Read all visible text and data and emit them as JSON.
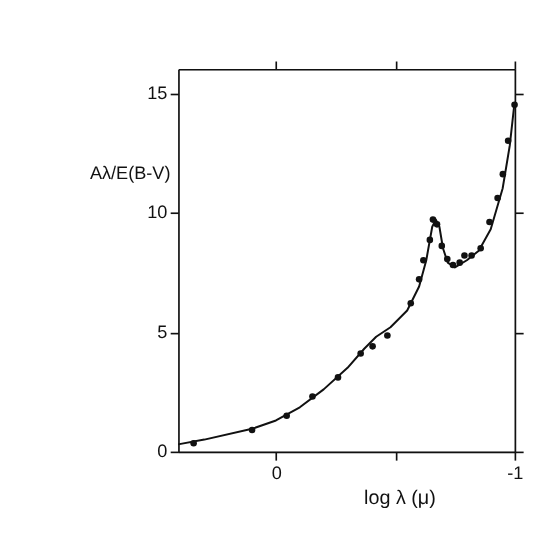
{
  "chart_data": {
    "type": "line",
    "xlabel": "log λ (μ)",
    "ylabel": "Aλ/E(B-V)",
    "xlim": [
      0.41,
      -1
    ],
    "xticks": [
      0,
      {
        "value": -0.5,
        "label": null
      },
      -1
    ],
    "ylim": [
      0,
      16
    ],
    "yticks": [
      0,
      5,
      10,
      15
    ],
    "grid": false,
    "series": [
      {
        "type": "line",
        "color": "#111111",
        "marker": "none",
        "line_style": "solid",
        "x": [
          0.41,
          0.3,
          0.1,
          0,
          -0.1,
          -0.2,
          -0.3,
          -0.37,
          -0.42,
          -0.48,
          -0.55,
          -0.6,
          -0.63,
          -0.655,
          -0.67,
          -0.685,
          -0.7,
          -0.72,
          -0.75,
          -0.8,
          -0.85,
          -0.9,
          -0.95,
          -0.98,
          -1.0
        ],
        "values": [
          0.3,
          0.5,
          0.95,
          1.3,
          1.85,
          2.6,
          3.5,
          4.3,
          4.8,
          5.2,
          5.9,
          6.9,
          8.0,
          9.4,
          9.7,
          9.4,
          8.5,
          7.9,
          7.7,
          8.0,
          8.4,
          9.3,
          11.0,
          12.8,
          14.6
        ]
      },
      {
        "type": "scatter",
        "color": "#111111",
        "marker": "circle",
        "x": [
          0.345,
          0.1,
          -0.045,
          -0.153,
          -0.26,
          -0.355,
          -0.405,
          -0.467,
          -0.565,
          -0.6,
          -0.618,
          -0.645,
          -0.658,
          -0.675,
          -0.695,
          -0.718,
          -0.742,
          -0.77,
          -0.79,
          -0.82,
          -0.858,
          -0.895,
          -0.929,
          -0.951,
          -0.973,
          -1.0
        ],
        "values": [
          0.35,
          0.9,
          1.5,
          2.3,
          3.1,
          4.1,
          4.4,
          4.85,
          6.2,
          7.2,
          8.0,
          8.85,
          9.7,
          9.5,
          8.6,
          8.05,
          7.8,
          7.9,
          8.2,
          8.2,
          8.5,
          9.6,
          10.6,
          11.6,
          13.0,
          14.5
        ]
      }
    ]
  }
}
